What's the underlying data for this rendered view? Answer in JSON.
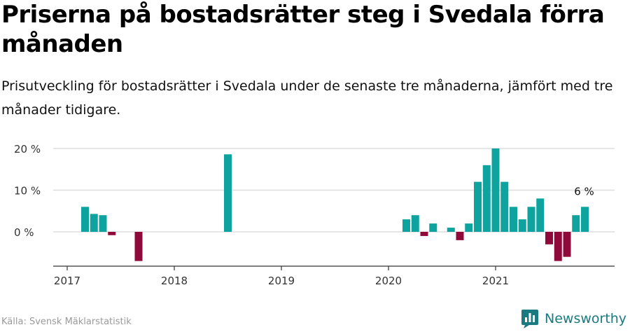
{
  "header": {
    "title": "Priserna på bostadsrätter steg i Svedala förra månaden",
    "subtitle": "Prisutveckling för bostadsrätter i Svedala under de senaste tre månaderna, jämfört med tre månader tidigare."
  },
  "footer": {
    "source": "Källa: Svensk Mäklarstatistik",
    "brand": "Newsworthy"
  },
  "colors": {
    "positive": "#0fa3a0",
    "negative": "#8f0a3a",
    "grid": "#dddddd",
    "axis": "#333333",
    "brand": "#1a7a7f"
  },
  "icons": {
    "brand": "newsworthy-bar-chart-icon"
  },
  "chart_data": {
    "type": "bar",
    "title": "Priserna på bostadsrätter steg i Svedala förra månaden",
    "subtitle": "Prisutveckling för bostadsrätter i Svedala under de senaste tre månaderna, jämfört med tre månader tidigare.",
    "xlabel": "",
    "ylabel": "",
    "unit": "%",
    "ylim": [
      -8,
      21
    ],
    "y_ticks": [
      0,
      10,
      20
    ],
    "y_tick_labels": [
      "0 %",
      "10 %",
      "20 %"
    ],
    "x_tick_labels": [
      "2017",
      "2018",
      "2019",
      "2020",
      "2021"
    ],
    "x_tick_dates": [
      "2017-01",
      "2018-01",
      "2019-01",
      "2020-01",
      "2021-01"
    ],
    "x_range": [
      "2016-12",
      "2021-12"
    ],
    "grid": true,
    "legend": "none",
    "annotation": {
      "label": "6 %",
      "date": "2021-11"
    },
    "dates": [
      "2017-03",
      "2017-04",
      "2017-05",
      "2017-06",
      "2017-07",
      "2017-08",
      "2017-09",
      "2017-10",
      "2017-11",
      "2017-12",
      "2018-01",
      "2018-02",
      "2018-03",
      "2018-04",
      "2018-05",
      "2018-06",
      "2018-07",
      "2018-08",
      "2018-09",
      "2018-10",
      "2018-11",
      "2018-12",
      "2019-01",
      "2019-02",
      "2019-03",
      "2019-04",
      "2019-05",
      "2019-06",
      "2019-07",
      "2019-08",
      "2019-09",
      "2019-10",
      "2019-11",
      "2019-12",
      "2020-01",
      "2020-02",
      "2020-03",
      "2020-04",
      "2020-05",
      "2020-06",
      "2020-07",
      "2020-08",
      "2020-09",
      "2020-10",
      "2020-11",
      "2020-12",
      "2021-01",
      "2021-02",
      "2021-03",
      "2021-04",
      "2021-05",
      "2021-06",
      "2021-07",
      "2021-08",
      "2021-09",
      "2021-10",
      "2021-11"
    ],
    "values": [
      6,
      4.3,
      4,
      -0.8,
      null,
      null,
      -7,
      null,
      null,
      null,
      null,
      null,
      null,
      null,
      null,
      null,
      18.6,
      null,
      null,
      null,
      null,
      null,
      null,
      null,
      null,
      null,
      null,
      null,
      null,
      null,
      null,
      null,
      null,
      null,
      null,
      null,
      3,
      4,
      -1,
      2,
      null,
      1,
      -2,
      2,
      12,
      16,
      20,
      12,
      6,
      3,
      6,
      8,
      -3,
      -7,
      -6,
      4,
      6
    ]
  }
}
